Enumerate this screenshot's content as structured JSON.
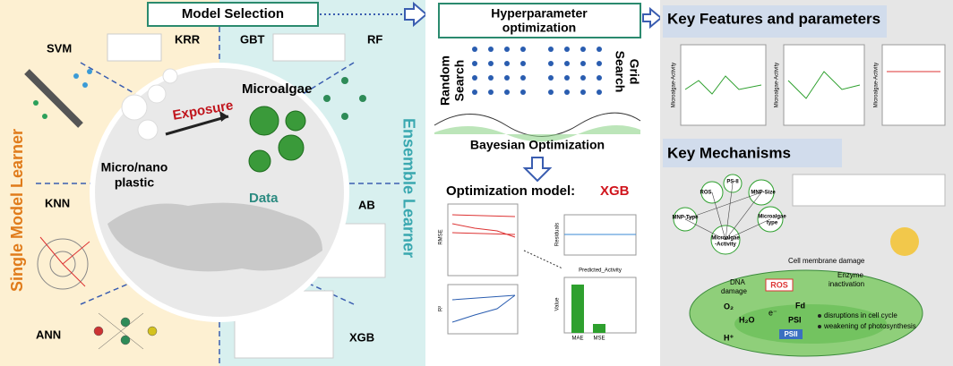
{
  "left_panel": {
    "header": "Model Selection",
    "single_label": "Single Model Learner",
    "ensemble_label": "Ensemble Learner",
    "models": {
      "svm": "SVM",
      "krr": "KRR",
      "gbt": "GBT",
      "rf": "RF",
      "knn": "KNN",
      "ab": "AB",
      "ann": "ANN",
      "xgb": "XGB"
    },
    "center": {
      "microalgae": "Microalgae",
      "exposure": "Exposure",
      "plastic_1": "Micro/nano",
      "plastic_2": "plastic",
      "data": "Data"
    }
  },
  "middle_panel": {
    "title_1": "Hyperparameter",
    "title_2": "optimization",
    "random_1": "Random",
    "random_2": "Search",
    "grid_1": "Grid",
    "grid_2": "Search",
    "bayesian": "Bayesian Optimization",
    "model_label": "Optimization model: ",
    "model_name": "XGB",
    "chart_labels": {
      "rmse": "RMSE",
      "r2": "R²",
      "residuals": "Residuals",
      "predicted": "Predicted_Activity",
      "value": "Value",
      "mae": "MAE",
      "mse": "MSE"
    }
  },
  "right_panel": {
    "features_title": "Key Features and parameters",
    "activity_label": "Microalgae-Activity",
    "mechanisms_title": "Key Mechanisms",
    "network": {
      "ros": "ROS",
      "ps2": "PS-II",
      "mnp_size": "MNP-Size",
      "mnp_type": "MNP-Type",
      "algae_type_1": "Microalgae",
      "algae_type_2": "type",
      "activity_1": "Microalgae",
      "activity_2": "-Activity"
    },
    "cell": {
      "membrane": "Cell membrane damage",
      "dna_1": "DNA",
      "dna_2": "damage",
      "ros": "ROS",
      "enzyme_1": "Enzyme",
      "enzyme_2": "inactivation",
      "o2": "O₂",
      "h2o": "H₂O",
      "h": "H⁺",
      "fd": "Fd",
      "psi": "PSI",
      "psii": "PSII",
      "electron": "e⁻",
      "effect_1": "disruptions in cell cycle",
      "effect_2": "weakening of photosynthesis"
    }
  }
}
